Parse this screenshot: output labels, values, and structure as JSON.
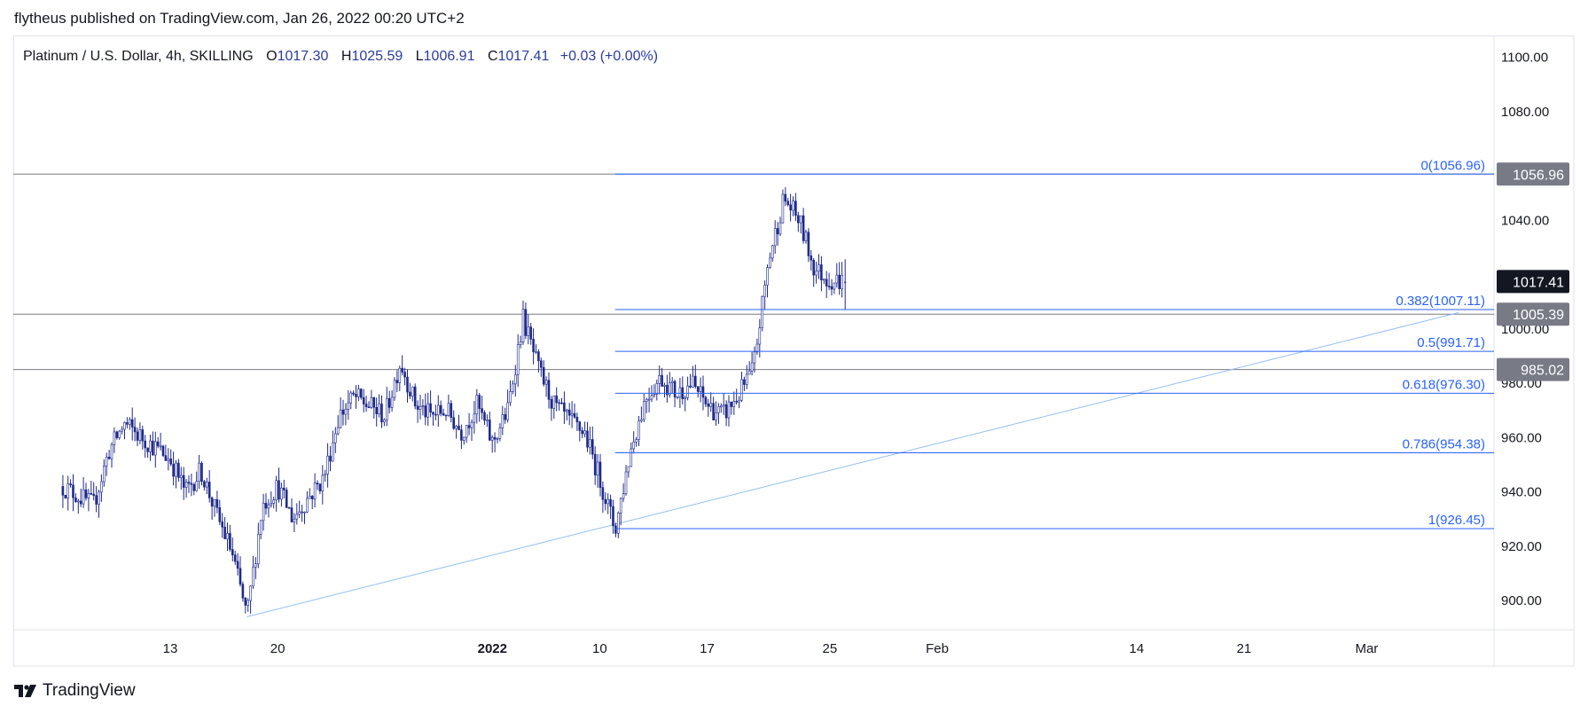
{
  "header": {
    "published_by": "flytheus published on TradingView.com, Jan 26, 2022 00:20 UTC+2"
  },
  "legend": {
    "symbol": "Platinum / U.S. Dollar, 4h, SKILLING",
    "open_label": "O",
    "open": "1017.30",
    "high_label": "H",
    "high": "1025.59",
    "low_label": "L",
    "low": "1006.91",
    "close_label": "C",
    "close": "1017.41",
    "change": "+0.03 (+0.00%)"
  },
  "footer": {
    "brand": "TradingView",
    "logo_icon": "tradingview-logo-icon"
  },
  "colors": {
    "candle": "#1e2a8a",
    "fib_line": "#2962ff",
    "fib_text": "#2962ff",
    "trend_line": "#90bff9",
    "hline": "#787b86",
    "price_tag_bg": "#787b86",
    "last_price_bg": "#131722",
    "axis_text": "#131722"
  },
  "chart_data": {
    "type": "candlestick",
    "timeframe": "4h",
    "ylim": [
      880,
      1105
    ],
    "y_ticks": [
      "1100.00",
      "1080.00",
      "1040.00",
      "1000.00",
      "980.00",
      "960.00",
      "940.00",
      "920.00",
      "900.00"
    ],
    "x_ticks": [
      {
        "label": "13",
        "date": "2021-12-13"
      },
      {
        "label": "20",
        "date": "2021-12-20"
      },
      {
        "label": "2022",
        "date": "2022-01-03"
      },
      {
        "label": "10",
        "date": "2022-01-10"
      },
      {
        "label": "17",
        "date": "2022-01-17"
      },
      {
        "label": "25",
        "date": "2022-01-25"
      },
      {
        "label": "Feb",
        "date": "2022-02-01"
      },
      {
        "label": "14",
        "date": "2022-02-14"
      },
      {
        "label": "21",
        "date": "2022-02-21"
      },
      {
        "label": "Mar",
        "date": "2022-03-01"
      }
    ],
    "price_path": [
      [
        "2021-12-06",
        942
      ],
      [
        "2021-12-08",
        935
      ],
      [
        "2021-12-09",
        955
      ],
      [
        "2021-12-10",
        965
      ],
      [
        "2021-12-13",
        952
      ],
      [
        "2021-12-14",
        940
      ],
      [
        "2021-12-15",
        948
      ],
      [
        "2021-12-16",
        932
      ],
      [
        "2021-12-17",
        918
      ],
      [
        "2021-12-18",
        894
      ],
      [
        "2021-12-19",
        935
      ],
      [
        "2021-12-20",
        942
      ],
      [
        "2021-12-21",
        930
      ],
      [
        "2021-12-22",
        938
      ],
      [
        "2021-12-23",
        945
      ],
      [
        "2021-12-24",
        968
      ],
      [
        "2021-12-25",
        975
      ],
      [
        "2021-12-27",
        968
      ],
      [
        "2021-12-28",
        988
      ],
      [
        "2021-12-29",
        972
      ],
      [
        "2021-12-30",
        968
      ],
      [
        "2021-12-31",
        970
      ],
      [
        "2022-01-01",
        962
      ],
      [
        "2022-01-02",
        972
      ],
      [
        "2022-01-03",
        958
      ],
      [
        "2022-01-04",
        970
      ],
      [
        "2022-01-05",
        1004
      ],
      [
        "2022-01-06",
        985
      ],
      [
        "2022-01-07",
        972
      ],
      [
        "2022-01-08",
        966
      ],
      [
        "2022-01-09",
        962
      ],
      [
        "2022-01-10",
        945
      ],
      [
        "2022-01-11",
        926
      ],
      [
        "2022-01-12",
        955
      ],
      [
        "2022-01-13",
        975
      ],
      [
        "2022-01-14",
        982
      ],
      [
        "2022-01-15",
        976
      ],
      [
        "2022-01-16",
        980
      ],
      [
        "2022-01-17",
        972
      ],
      [
        "2022-01-18",
        968
      ],
      [
        "2022-01-19",
        975
      ],
      [
        "2022-01-20",
        985
      ],
      [
        "2022-01-21",
        1025
      ],
      [
        "2022-01-22",
        1048
      ],
      [
        "2022-01-23",
        1040
      ],
      [
        "2022-01-24",
        1022
      ],
      [
        "2022-01-25",
        1018
      ],
      [
        "2022-01-26",
        1017.41
      ]
    ],
    "ohlc_last": {
      "open": 1017.3,
      "high": 1025.59,
      "low": 1006.91,
      "close": 1017.41
    },
    "fibonacci": {
      "start_date": "2022-01-11",
      "levels": [
        {
          "ratio": "0",
          "value": 1056.96,
          "label": "0(1056.96)"
        },
        {
          "ratio": "0.382",
          "value": 1007.11,
          "label": "0.382(1007.11)"
        },
        {
          "ratio": "0.5",
          "value": 991.71,
          "label": "0.5(991.71)"
        },
        {
          "ratio": "0.618",
          "value": 976.3,
          "label": "0.618(976.30)"
        },
        {
          "ratio": "0.786",
          "value": 954.38,
          "label": "0.786(954.38)"
        },
        {
          "ratio": "1",
          "value": 926.45,
          "label": "1(926.45)"
        }
      ]
    },
    "horizontal_lines": [
      {
        "value": 1056.96,
        "label": "1056.96"
      },
      {
        "value": 1005.39,
        "label": "1005.39"
      },
      {
        "value": 985.02,
        "label": "985.02"
      }
    ],
    "trend_line": {
      "from": [
        "2021-12-18",
        894
      ],
      "to": [
        "2022-03-07",
        1006
      ]
    },
    "last_price": {
      "value": 1017.41,
      "label": "1017.41"
    }
  }
}
